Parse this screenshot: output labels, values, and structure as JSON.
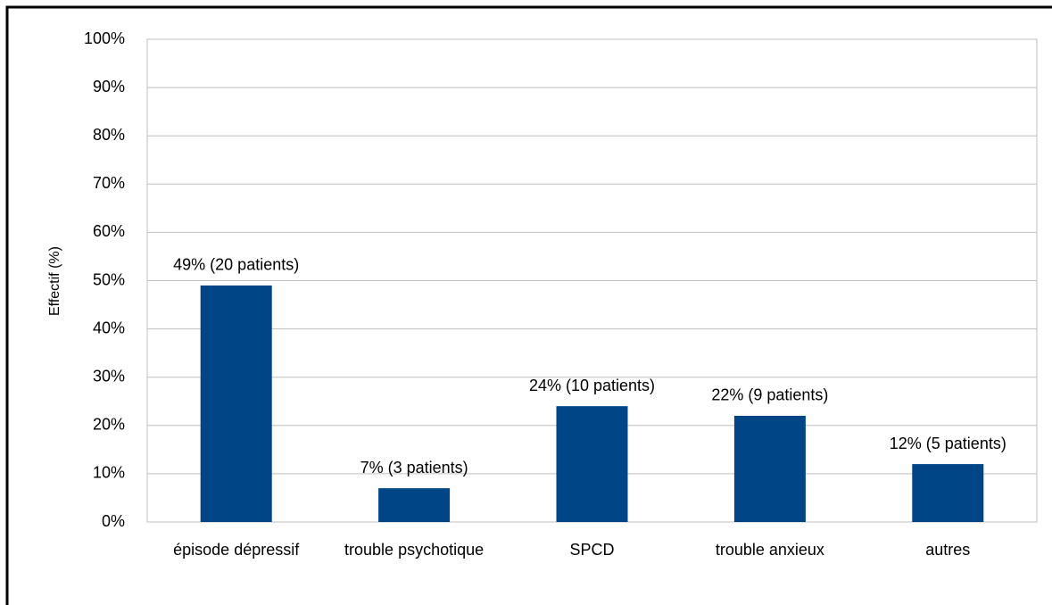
{
  "chart_data": {
    "type": "bar",
    "y_label": "Effectif (%)",
    "categories": [
      "épisode dépressif",
      "trouble psychotique",
      "SPCD",
      "trouble anxieux",
      "autres"
    ],
    "values": [
      49,
      7,
      24,
      22,
      12
    ],
    "value_labels": [
      "49% (20 patients)",
      "7% (3 patients)",
      "24% (10 patients)",
      "22% (9 patients)",
      "12% (5 patients)"
    ],
    "color": "#004586",
    "ylim": [
      0,
      100
    ],
    "yticks": [
      {
        "value": 0,
        "label": "0%"
      },
      {
        "value": 10,
        "label": "10%"
      },
      {
        "value": 20,
        "label": "20%"
      },
      {
        "value": 30,
        "label": "30%"
      },
      {
        "value": 40,
        "label": "40%"
      },
      {
        "value": 50,
        "label": "50%"
      },
      {
        "value": 60,
        "label": "60%"
      },
      {
        "value": 70,
        "label": "70%"
      },
      {
        "value": 80,
        "label": "80%"
      },
      {
        "value": 90,
        "label": "90%"
      },
      {
        "value": 100,
        "label": "100%"
      }
    ],
    "grid": true
  }
}
